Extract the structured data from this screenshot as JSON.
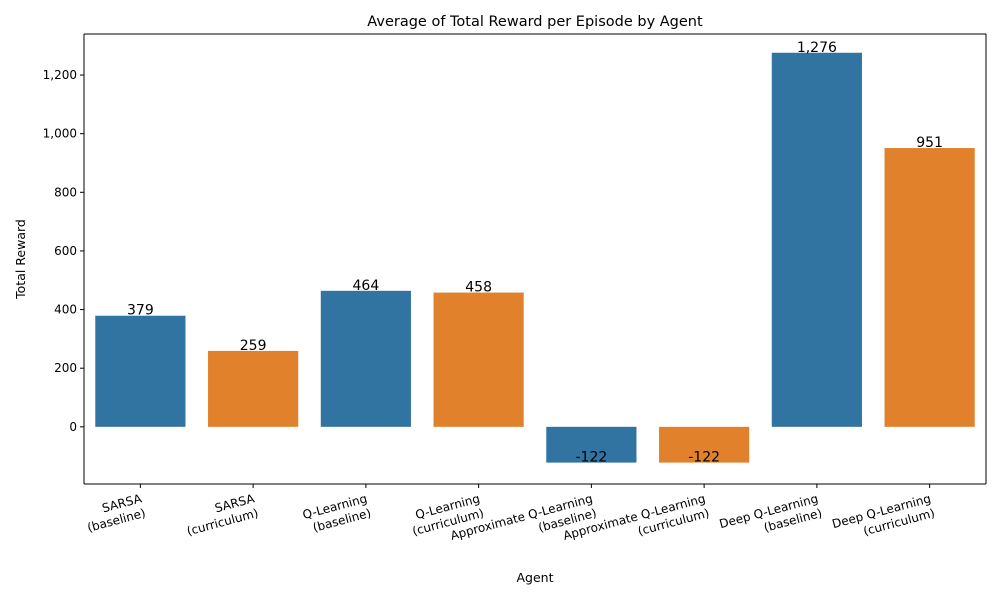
{
  "chart_data": {
    "type": "bar",
    "title": "Average of Total Reward per Episode by Agent",
    "xlabel": "Agent",
    "ylabel": "Total Reward",
    "categories": [
      [
        "SARSA",
        "(baseline)"
      ],
      [
        "SARSA",
        "(curriculum)"
      ],
      [
        "Q-Learning",
        "(baseline)"
      ],
      [
        "Q-Learning",
        "(curriculum)"
      ],
      [
        "Approximate Q-Learning",
        "(baseline)"
      ],
      [
        "Approximate Q-Learning",
        "(curriculum)"
      ],
      [
        "Deep Q-Learning",
        "(baseline)"
      ],
      [
        "Deep Q-Learning",
        "(curriculum)"
      ]
    ],
    "values": [
      379,
      259,
      464,
      458,
      -122,
      -122,
      1276,
      951
    ],
    "value_labels": [
      "379",
      "259",
      "464",
      "458",
      "-122",
      "-122",
      "1,276",
      "951"
    ],
    "bar_colors": [
      "#3274a1",
      "#e1812c",
      "#3274a1",
      "#e1812c",
      "#3274a1",
      "#e1812c",
      "#3274a1",
      "#e1812c"
    ],
    "ylim": [
      -195,
      1340
    ],
    "yticks": [
      0,
      200,
      400,
      600,
      800,
      1000,
      1200
    ],
    "ytick_labels": [
      "0",
      "200",
      "400",
      "600",
      "800",
      "1,000",
      "1,200"
    ],
    "grid": false,
    "legend": "none"
  }
}
